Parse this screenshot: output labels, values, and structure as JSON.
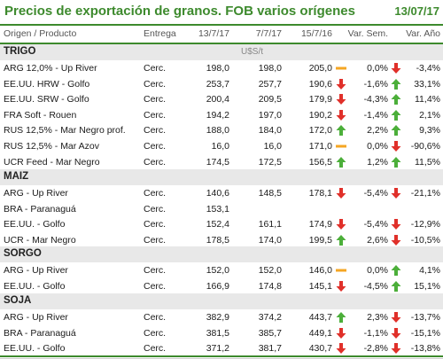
{
  "header": {
    "title": "Precios de exportación de granos. FOB varios orígenes",
    "date": "13/07/17"
  },
  "columns": {
    "origin": "Origen / Producto",
    "entrega": "Entrega",
    "d1": "13/7/17",
    "d2": "7/7/17",
    "d3": "15/7/16",
    "var_sem": "Var. Sem.",
    "var_ano": "Var. Año"
  },
  "colors": {
    "accent": "#3d8a2d",
    "up": "#4caf3a",
    "down": "#e0302a",
    "flat": "#f5a623"
  },
  "sections": [
    {
      "name": "TRIGO",
      "unit": "U$S/t",
      "rows": [
        {
          "name": "ARG 12,0% - Up River",
          "entrega": "Cerc.",
          "d1": "198,0",
          "d2": "198,0",
          "d3": "205,0",
          "ind_c": "flat",
          "sem": "0,0%",
          "ind_s": "down",
          "ano": "-3,4%"
        },
        {
          "name": "EE.UU. HRW - Golfo",
          "entrega": "Cerc.",
          "d1": "253,7",
          "d2": "257,7",
          "d3": "190,6",
          "ind_c": "down",
          "sem": "-1,6%",
          "ind_s": "up",
          "ano": "33,1%"
        },
        {
          "name": "EE.UU. SRW - Golfo",
          "entrega": "Cerc.",
          "d1": "200,4",
          "d2": "209,5",
          "d3": "179,9",
          "ind_c": "down",
          "sem": "-4,3%",
          "ind_s": "up",
          "ano": "11,4%"
        },
        {
          "name": "FRA Soft - Rouen",
          "entrega": "Cerc.",
          "d1": "194,2",
          "d2": "197,0",
          "d3": "190,2",
          "ind_c": "down",
          "sem": "-1,4%",
          "ind_s": "up",
          "ano": "2,1%"
        },
        {
          "name": "RUS 12,5% - Mar Negro prof.",
          "entrega": "Cerc.",
          "d1": "188,0",
          "d2": "184,0",
          "d3": "172,0",
          "ind_c": "up",
          "sem": "2,2%",
          "ind_s": "up",
          "ano": "9,3%"
        },
        {
          "name": "RUS 12,5% - Mar Azov",
          "entrega": "Cerc.",
          "d1": "16,0",
          "d2": "16,0",
          "d3": "171,0",
          "ind_c": "flat",
          "sem": "0,0%",
          "ind_s": "down",
          "ano": "-90,6%"
        },
        {
          "name": "UCR Feed - Mar Negro",
          "entrega": "Cerc.",
          "d1": "174,5",
          "d2": "172,5",
          "d3": "156,5",
          "ind_c": "up",
          "sem": "1,2%",
          "ind_s": "up",
          "ano": "11,5%"
        }
      ]
    },
    {
      "name": "MAIZ",
      "unit": "",
      "rows": [
        {
          "name": "ARG - Up River",
          "entrega": "Cerc.",
          "d1": "140,6",
          "d2": "148,5",
          "d3": "178,1",
          "ind_c": "down",
          "sem": "-5,4%",
          "ind_s": "down",
          "ano": "-21,1%"
        },
        {
          "name": "BRA - Paranaguá",
          "entrega": "Cerc.",
          "d1": "153,1",
          "d2": "",
          "d3": "",
          "ind_c": "",
          "sem": "",
          "ind_s": "",
          "ano": ""
        },
        {
          "name": "EE.UU. - Golfo",
          "entrega": "Cerc.",
          "d1": "152,4",
          "d2": "161,1",
          "d3": "174,9",
          "ind_c": "down",
          "sem": "-5,4%",
          "ind_s": "down",
          "ano": "-12,9%"
        },
        {
          "name": "UCR - Mar Negro",
          "entrega": "Cerc.",
          "d1": "178,5",
          "d2": "174,0",
          "d3": "199,5",
          "ind_c": "up",
          "sem": "2,6%",
          "ind_s": "down",
          "ano": "-10,5%"
        }
      ]
    },
    {
      "name": "SORGO",
      "unit": "",
      "rows": [
        {
          "name": "ARG - Up River",
          "entrega": "Cerc.",
          "d1": "152,0",
          "d2": "152,0",
          "d3": "146,0",
          "ind_c": "flat",
          "sem": "0,0%",
          "ind_s": "up",
          "ano": "4,1%"
        },
        {
          "name": "EE.UU. - Golfo",
          "entrega": "Cerc.",
          "d1": "166,9",
          "d2": "174,8",
          "d3": "145,1",
          "ind_c": "down",
          "sem": "-4,5%",
          "ind_s": "up",
          "ano": "15,1%"
        }
      ]
    },
    {
      "name": "SOJA",
      "unit": "",
      "rows": [
        {
          "name": "ARG - Up River",
          "entrega": "Cerc.",
          "d1": "382,9",
          "d2": "374,2",
          "d3": "443,7",
          "ind_c": "up",
          "sem": "2,3%",
          "ind_s": "down",
          "ano": "-13,7%"
        },
        {
          "name": "BRA - Paranaguá",
          "entrega": "Cerc.",
          "d1": "381,5",
          "d2": "385,7",
          "d3": "449,1",
          "ind_c": "down",
          "sem": "-1,1%",
          "ind_s": "down",
          "ano": "-15,1%"
        },
        {
          "name": "EE.UU. - Golfo",
          "entrega": "Cerc.",
          "d1": "371,2",
          "d2": "381,7",
          "d3": "430,7",
          "ind_c": "down",
          "sem": "-2,8%",
          "ind_s": "down",
          "ano": "-13,8%"
        }
      ]
    }
  ]
}
